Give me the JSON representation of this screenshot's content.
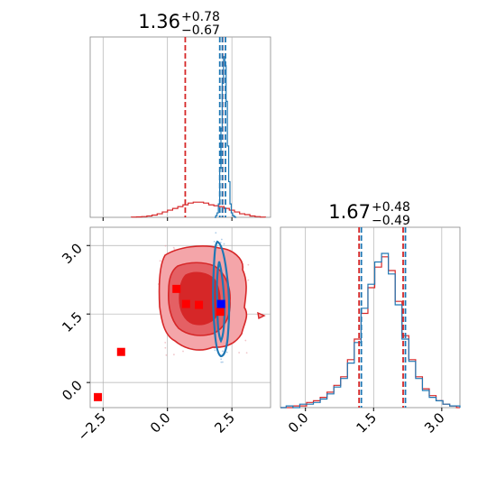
{
  "chart_data": {
    "type": "corner",
    "colors": {
      "red": "#d62728",
      "blue": "#1f77b4",
      "grid": "#b0b0b0",
      "marker_red": "#ff0000",
      "marker_blue": "#0000ff"
    },
    "panels": [
      {
        "id": "top-left-histogram",
        "type": "histogram",
        "title_value": "1.36",
        "title_plus": "+0.78",
        "title_minus": "−0.67",
        "xlim": [
          -3.0,
          4.0
        ],
        "gridlines_x": [
          -2.5,
          0.0,
          2.5
        ],
        "quantile_lines": [
          {
            "series": "red",
            "x": [
              0.69,
              2.14
            ]
          },
          {
            "series": "blue",
            "x": [
              2.03,
              2.13,
              2.25
            ]
          }
        ],
        "series": [
          {
            "color": "red",
            "x": [
              -1.3,
              -1.1,
              -0.9,
              -0.7,
              -0.5,
              -0.3,
              -0.1,
              0.1,
              0.3,
              0.5,
              0.7,
              0.9,
              1.1,
              1.3,
              1.5,
              1.7,
              1.9,
              2.1,
              2.3,
              2.5,
              2.7,
              2.9,
              3.1,
              3.3,
              3.5,
              3.7
            ],
            "y": [
              0.3,
              0.5,
              0.8,
              1.5,
              2.5,
              4,
              6,
              8,
              10,
              12,
              14,
              16,
              17,
              17,
              16,
              14,
              13,
              12,
              10,
              8,
              6,
              4,
              3,
              1.5,
              0.8,
              0.3
            ]
          },
          {
            "color": "blue",
            "x": [
              1.85,
              1.9,
              1.95,
              2.0,
              2.05,
              2.1,
              2.15,
              2.2,
              2.25,
              2.3,
              2.35,
              2.4,
              2.45,
              2.5,
              2.55,
              2.6,
              2.65
            ],
            "y": [
              0,
              2,
              5,
              15,
              55,
              100,
              150,
              180,
              170,
              130,
              80,
              40,
              15,
              5,
              2,
              1,
              0
            ]
          }
        ]
      },
      {
        "id": "bottom-left-scatter",
        "type": "2d-density",
        "xlim": [
          -3.0,
          4.0
        ],
        "ylim": [
          -0.55,
          3.4
        ],
        "xticks": [
          -2.5,
          0.0,
          2.5
        ],
        "xtick_labels": [
          "−2.5",
          "0.0",
          "2.5"
        ],
        "yticks": [
          0.0,
          1.5,
          3.0
        ],
        "ytick_labels": [
          "0.0",
          "1.5",
          "3.0"
        ],
        "gridlines_x": [
          -2.5,
          0.0,
          2.5
        ],
        "gridlines_y": [
          0.0,
          1.5,
          3.0
        ],
        "red_markers": [
          {
            "x": -2.7,
            "y": -0.32
          },
          {
            "x": -1.8,
            "y": 0.67
          },
          {
            "x": 0.35,
            "y": 2.05
          },
          {
            "x": 0.72,
            "y": 1.72
          },
          {
            "x": 1.22,
            "y": 1.7
          },
          {
            "x": 2.05,
            "y": 1.55
          }
        ],
        "blue_markers": [
          {
            "x": 2.08,
            "y": 1.72
          }
        ]
      },
      {
        "id": "bottom-right-histogram",
        "type": "histogram",
        "title_value": "1.67",
        "title_plus": "+0.48",
        "title_minus": "−0.49",
        "xlim": [
          -0.55,
          3.4
        ],
        "xticks": [
          0.0,
          1.5,
          3.0
        ],
        "xtick_labels": [
          "0.0",
          "1.5",
          "3.0"
        ],
        "gridlines_x": [
          0.0,
          1.5,
          3.0
        ],
        "quantile_lines": [
          {
            "series": "red",
            "x": [
              1.18,
              2.15
            ]
          },
          {
            "series": "blue",
            "x": [
              1.23,
              2.2
            ]
          }
        ],
        "series": [
          {
            "color": "red",
            "x": [
              -0.5,
              -0.35,
              -0.2,
              -0.05,
              0.1,
              0.25,
              0.4,
              0.55,
              0.7,
              0.85,
              1.0,
              1.15,
              1.3,
              1.45,
              1.6,
              1.75,
              1.9,
              2.05,
              2.2,
              2.35,
              2.5,
              2.65,
              2.8,
              2.95,
              3.1,
              3.25,
              3.4
            ],
            "y": [
              0,
              0,
              1,
              1,
              3,
              4,
              6,
              9,
              13,
              18,
              28,
              40,
              55,
              70,
              82,
              88,
              80,
              62,
              42,
              28,
              18,
              11,
              7,
              4,
              2,
              1,
              0
            ]
          },
          {
            "color": "blue",
            "x": [
              -0.5,
              -0.35,
              -0.2,
              -0.05,
              0.1,
              0.25,
              0.4,
              0.55,
              0.7,
              0.85,
              1.0,
              1.15,
              1.3,
              1.45,
              1.6,
              1.75,
              1.9,
              2.05,
              2.2,
              2.35,
              2.5,
              2.65,
              2.8,
              2.95,
              3.1,
              3.25,
              3.4
            ],
            "y": [
              0,
              1,
              0,
              2,
              2,
              3,
              5,
              8,
              12,
              17,
              26,
              38,
              58,
              72,
              85,
              90,
              78,
              60,
              40,
              27,
              17,
              10,
              6,
              4,
              2,
              1,
              1
            ]
          }
        ]
      }
    ]
  }
}
